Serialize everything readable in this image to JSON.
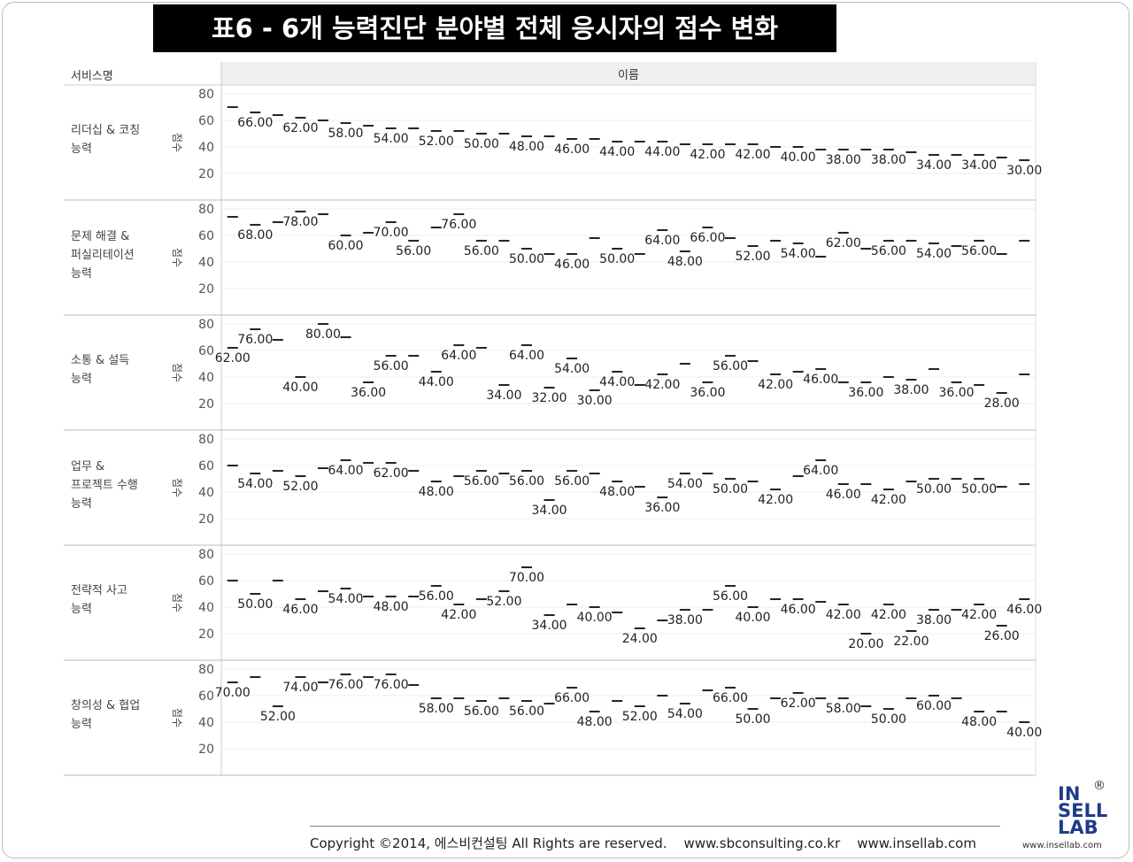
{
  "title": "표6 - 6개 능력진단 분야별 전체 응시자의 점수 변화",
  "chart_data": {
    "type": "dash",
    "row_header": "서비스명",
    "column_header": "이름",
    "y_label": "점수",
    "ylim": [
      0,
      86.7
    ],
    "yticks": [
      20,
      40,
      60,
      80
    ],
    "grid": true,
    "color": "#222222",
    "panels": [
      {
        "name_lines": [
          "리더십 & 코칭",
          "능력"
        ],
        "values": [
          70,
          66,
          64,
          62,
          60,
          58,
          56,
          54,
          54,
          52,
          52,
          50,
          50,
          48,
          48,
          46,
          46,
          44,
          44,
          44,
          42,
          42,
          42,
          42,
          40,
          40,
          38,
          38,
          38,
          38,
          36,
          34,
          34,
          34,
          32,
          30
        ],
        "value_labels": [
          null,
          "66.00",
          null,
          "62.00",
          null,
          "58.00",
          null,
          "54.00",
          null,
          "52.00",
          null,
          "50.00",
          null,
          "48.00",
          null,
          "46.00",
          null,
          "44.00",
          null,
          "44.00",
          null,
          "42.00",
          null,
          "42.00",
          null,
          "40.00",
          null,
          "38.00",
          null,
          "38.00",
          null,
          "34.00",
          null,
          "34.00",
          null,
          "30.00"
        ]
      },
      {
        "name_lines": [
          "문제 해결 &",
          "퍼실리테이션",
          "능력"
        ],
        "values": [
          74,
          68,
          70,
          78,
          76,
          60,
          62,
          70,
          56,
          66,
          76,
          56,
          56,
          50,
          46,
          46,
          58,
          50,
          46,
          64,
          48,
          66,
          58,
          52,
          56,
          54,
          44,
          62,
          50,
          56,
          56,
          54,
          52,
          56,
          46,
          56
        ],
        "value_labels": [
          null,
          "68.00",
          null,
          "78.00",
          null,
          "60.00",
          null,
          "70.00",
          "56.00",
          null,
          "76.00",
          "56.00",
          null,
          "50.00",
          null,
          "46.00",
          null,
          "50.00",
          null,
          "64.00",
          "48.00",
          "66.00",
          null,
          "52.00",
          null,
          "54.00",
          null,
          "62.00",
          null,
          "56.00",
          null,
          "54.00",
          null,
          "56.00",
          null,
          null
        ]
      },
      {
        "name_lines": [
          "소통 & 설득",
          "능력"
        ],
        "values": [
          62,
          76,
          68,
          40,
          80,
          70,
          36,
          56,
          56,
          44,
          64,
          62,
          34,
          64,
          32,
          54,
          30,
          44,
          34,
          42,
          50,
          36,
          56,
          52,
          42,
          44,
          46,
          36,
          36,
          40,
          38,
          46,
          36,
          34,
          28,
          42
        ],
        "value_labels": [
          "62.00",
          "76.00",
          null,
          "40.00",
          "80.00",
          null,
          "36.00",
          "56.00",
          null,
          "44.00",
          "64.00",
          null,
          "34.00",
          "64.00",
          "32.00",
          "54.00",
          "30.00",
          "44.00",
          null,
          "42.00",
          null,
          "36.00",
          "56.00",
          null,
          "42.00",
          null,
          "46.00",
          null,
          "36.00",
          null,
          "38.00",
          null,
          "36.00",
          null,
          "28.00",
          null
        ]
      },
      {
        "name_lines": [
          "업무 &",
          "프로젝트 수행",
          "능력"
        ],
        "values": [
          60,
          54,
          56,
          52,
          58,
          64,
          62,
          62,
          56,
          48,
          52,
          56,
          54,
          56,
          34,
          56,
          54,
          48,
          44,
          36,
          54,
          54,
          50,
          48,
          42,
          52,
          64,
          46,
          46,
          42,
          48,
          50,
          50,
          50,
          44,
          46
        ],
        "value_labels": [
          null,
          "54.00",
          null,
          "52.00",
          null,
          "64.00",
          null,
          "62.00",
          null,
          "48.00",
          null,
          "56.00",
          null,
          "56.00",
          "34.00",
          "56.00",
          null,
          "48.00",
          null,
          "36.00",
          "54.00",
          null,
          "50.00",
          null,
          "42.00",
          null,
          "64.00",
          "46.00",
          null,
          "42.00",
          null,
          "50.00",
          null,
          "50.00",
          null,
          null
        ]
      },
      {
        "name_lines": [
          "전략적 사고",
          "능력"
        ],
        "values": [
          60,
          50,
          60,
          46,
          52,
          54,
          48,
          48,
          48,
          56,
          42,
          46,
          52,
          70,
          34,
          42,
          40,
          36,
          24,
          30,
          38,
          38,
          56,
          40,
          46,
          46,
          44,
          42,
          20,
          42,
          22,
          38,
          38,
          42,
          26,
          46
        ],
        "value_labels": [
          null,
          "50.00",
          null,
          "46.00",
          null,
          "54.00",
          null,
          "48.00",
          null,
          "56.00",
          "42.00",
          null,
          "52.00",
          "70.00",
          "34.00",
          null,
          "40.00",
          null,
          "24.00",
          null,
          "38.00",
          null,
          "56.00",
          "40.00",
          null,
          "46.00",
          null,
          "42.00",
          "20.00",
          "42.00",
          "22.00",
          "38.00",
          null,
          "42.00",
          "26.00",
          "46.00"
        ]
      },
      {
        "name_lines": [
          "창의성 & 협업",
          "능력"
        ],
        "values": [
          70,
          74,
          52,
          74,
          70,
          76,
          74,
          76,
          68,
          58,
          58,
          56,
          58,
          56,
          54,
          66,
          48,
          56,
          52,
          60,
          54,
          64,
          66,
          50,
          58,
          62,
          58,
          58,
          52,
          50,
          58,
          60,
          58,
          48,
          48,
          40
        ],
        "value_labels": [
          "70.00",
          null,
          "52.00",
          "74.00",
          null,
          "76.00",
          null,
          "76.00",
          null,
          "58.00",
          null,
          "56.00",
          null,
          "56.00",
          null,
          "66.00",
          "48.00",
          null,
          "52.00",
          null,
          "54.00",
          null,
          "66.00",
          "50.00",
          null,
          "62.00",
          null,
          "58.00",
          null,
          "50.00",
          null,
          "60.00",
          null,
          "48.00",
          null,
          "40.00"
        ]
      }
    ]
  },
  "footer": "Copyright ©2014, 에스비컨설팅 All Rights are reserved.    www.sbconsulting.co.kr    www.insellab.com",
  "logo": {
    "lines": [
      "IN",
      "SELL",
      "LAB"
    ],
    "mark": "®",
    "url": "www.insellab.com"
  }
}
